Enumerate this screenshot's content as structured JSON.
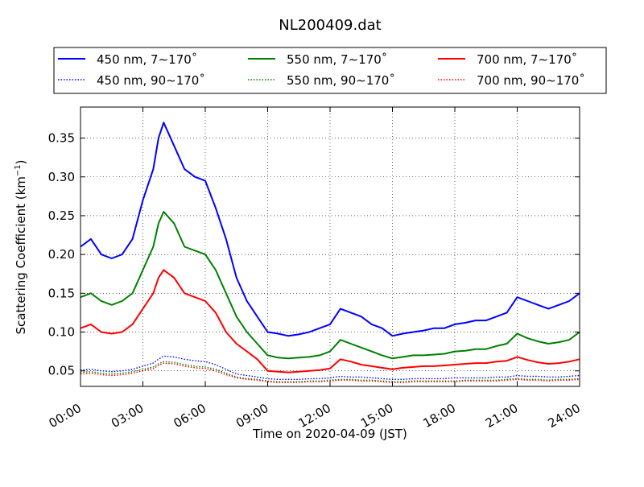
{
  "chart_data": {
    "type": "line",
    "title": "NL200409.dat",
    "xlabel": "Time on 2020-04-09 (JST)",
    "ylabel": "Scattering Coefficient (km⁻¹)",
    "ylabel_base": "Scattering Coefficient (km",
    "ylabel_exp": "−1",
    "ylabel_close": ")",
    "xlim": [
      "00:00",
      "24:00"
    ],
    "ylim": [
      0.03,
      0.39
    ],
    "x_ticks": [
      "00:00",
      "03:00",
      "06:00",
      "09:00",
      "12:00",
      "15:00",
      "18:00",
      "21:00",
      "24:00"
    ],
    "y_ticks": [
      "0.05",
      "0.10",
      "0.15",
      "0.20",
      "0.25",
      "0.30",
      "0.35"
    ],
    "grid": true,
    "legend_placement": "top, above plot, three columns",
    "x": [
      "00:00",
      "00:30",
      "01:00",
      "01:30",
      "02:00",
      "02:30",
      "03:00",
      "03:30",
      "03:45",
      "04:00",
      "04:30",
      "05:00",
      "05:30",
      "06:00",
      "06:30",
      "07:00",
      "07:30",
      "08:00",
      "08:30",
      "09:00",
      "09:30",
      "10:00",
      "10:30",
      "11:00",
      "11:30",
      "12:00",
      "12:30",
      "13:00",
      "13:30",
      "14:00",
      "14:30",
      "15:00",
      "15:30",
      "16:00",
      "16:30",
      "17:00",
      "17:30",
      "18:00",
      "18:30",
      "19:00",
      "19:30",
      "20:00",
      "20:30",
      "21:00",
      "21:30",
      "22:00",
      "22:30",
      "23:00",
      "23:30",
      "24:00"
    ],
    "series": [
      {
        "name": "450 nm, 7∼170˚",
        "color": "#0000ff",
        "style": "solid",
        "values": [
          0.21,
          0.22,
          0.2,
          0.195,
          0.2,
          0.22,
          0.27,
          0.31,
          0.35,
          0.37,
          0.34,
          0.31,
          0.3,
          0.295,
          0.26,
          0.22,
          0.17,
          0.14,
          0.12,
          0.1,
          0.098,
          0.095,
          0.097,
          0.1,
          0.105,
          0.11,
          0.13,
          0.125,
          0.12,
          0.11,
          0.105,
          0.095,
          0.098,
          0.1,
          0.102,
          0.105,
          0.105,
          0.11,
          0.112,
          0.115,
          0.115,
          0.12,
          0.125,
          0.145,
          0.14,
          0.135,
          0.13,
          0.135,
          0.14,
          0.15
        ]
      },
      {
        "name": "550 nm, 7∼170˚",
        "color": "#008000",
        "style": "solid",
        "values": [
          0.145,
          0.15,
          0.14,
          0.135,
          0.14,
          0.15,
          0.18,
          0.21,
          0.24,
          0.255,
          0.24,
          0.21,
          0.205,
          0.2,
          0.18,
          0.15,
          0.12,
          0.1,
          0.085,
          0.07,
          0.067,
          0.066,
          0.067,
          0.068,
          0.07,
          0.075,
          0.09,
          0.085,
          0.08,
          0.075,
          0.07,
          0.066,
          0.068,
          0.07,
          0.07,
          0.071,
          0.072,
          0.075,
          0.076,
          0.078,
          0.078,
          0.082,
          0.085,
          0.098,
          0.092,
          0.088,
          0.085,
          0.087,
          0.09,
          0.1
        ]
      },
      {
        "name": "700 nm, 7∼170˚",
        "color": "#ff0000",
        "style": "solid",
        "values": [
          0.105,
          0.11,
          0.1,
          0.098,
          0.1,
          0.11,
          0.13,
          0.15,
          0.17,
          0.18,
          0.17,
          0.15,
          0.145,
          0.14,
          0.125,
          0.1,
          0.085,
          0.075,
          0.065,
          0.05,
          0.049,
          0.048,
          0.049,
          0.05,
          0.051,
          0.053,
          0.065,
          0.062,
          0.058,
          0.056,
          0.054,
          0.052,
          0.054,
          0.055,
          0.056,
          0.056,
          0.057,
          0.058,
          0.059,
          0.06,
          0.06,
          0.062,
          0.063,
          0.068,
          0.064,
          0.061,
          0.059,
          0.06,
          0.062,
          0.065
        ]
      },
      {
        "name": "450 nm, 90∼170˚",
        "color": "#0000ff",
        "style": "dotted",
        "values": [
          0.051,
          0.052,
          0.05,
          0.049,
          0.05,
          0.052,
          0.056,
          0.06,
          0.065,
          0.069,
          0.068,
          0.065,
          0.063,
          0.062,
          0.058,
          0.052,
          0.046,
          0.044,
          0.042,
          0.04,
          0.039,
          0.039,
          0.039,
          0.04,
          0.04,
          0.041,
          0.043,
          0.042,
          0.042,
          0.041,
          0.04,
          0.039,
          0.039,
          0.04,
          0.04,
          0.04,
          0.04,
          0.041,
          0.041,
          0.041,
          0.041,
          0.042,
          0.042,
          0.044,
          0.043,
          0.043,
          0.042,
          0.042,
          0.043,
          0.044
        ]
      },
      {
        "name": "550 nm, 90∼170˚",
        "color": "#008000",
        "style": "dotted",
        "values": [
          0.048,
          0.049,
          0.047,
          0.046,
          0.047,
          0.049,
          0.052,
          0.055,
          0.059,
          0.062,
          0.061,
          0.058,
          0.056,
          0.055,
          0.052,
          0.047,
          0.042,
          0.04,
          0.039,
          0.037,
          0.036,
          0.036,
          0.036,
          0.037,
          0.037,
          0.038,
          0.039,
          0.039,
          0.038,
          0.038,
          0.037,
          0.036,
          0.036,
          0.037,
          0.037,
          0.037,
          0.037,
          0.037,
          0.038,
          0.038,
          0.038,
          0.038,
          0.039,
          0.04,
          0.039,
          0.039,
          0.038,
          0.039,
          0.039,
          0.04
        ]
      },
      {
        "name": "700 nm, 90∼170˚",
        "color": "#ff0000",
        "style": "dotted",
        "values": [
          0.046,
          0.047,
          0.045,
          0.044,
          0.045,
          0.047,
          0.05,
          0.053,
          0.057,
          0.06,
          0.059,
          0.056,
          0.054,
          0.053,
          0.05,
          0.045,
          0.041,
          0.039,
          0.038,
          0.036,
          0.035,
          0.035,
          0.035,
          0.036,
          0.036,
          0.037,
          0.038,
          0.038,
          0.037,
          0.037,
          0.036,
          0.035,
          0.035,
          0.036,
          0.036,
          0.036,
          0.036,
          0.036,
          0.037,
          0.037,
          0.037,
          0.037,
          0.038,
          0.039,
          0.038,
          0.038,
          0.037,
          0.038,
          0.038,
          0.039
        ]
      }
    ]
  }
}
